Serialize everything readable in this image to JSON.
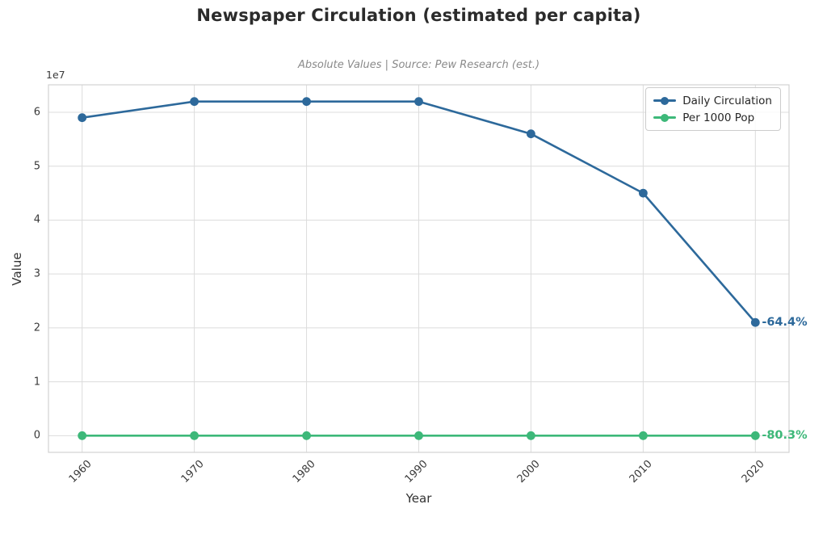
{
  "figure": {
    "title": "Newspaper Circulation (estimated per capita)",
    "subtitle": "Absolute Values | Source: Pew Research (est.)"
  },
  "chart_data": {
    "type": "line",
    "x": [
      1960,
      1970,
      1980,
      1990,
      2000,
      2010,
      2020
    ],
    "series": [
      {
        "name": "Daily Circulation",
        "color": "#2d699b",
        "values": [
          59000000,
          62000000,
          62000000,
          62000000,
          56000000,
          45000000,
          21000000
        ],
        "annotation": "-64.4%"
      },
      {
        "name": "Per 1000 Pop",
        "color": "#3db879",
        "values": [
          0,
          0,
          0,
          0,
          0,
          0,
          0
        ],
        "annotation": "-80.3%"
      }
    ],
    "title": "Newspaper Circulation (estimated per capita)",
    "subtitle": "Absolute Values | Source: Pew Research (est.)",
    "xlabel": "Year",
    "ylabel": "Value",
    "y_offset_label": "1e7",
    "xticks": [
      1960,
      1970,
      1980,
      1990,
      2000,
      2010,
      2020
    ],
    "yticks": [
      0,
      1,
      2,
      3,
      4,
      5,
      6
    ],
    "ytick_scale": 10000000,
    "xlim": [
      1957,
      2023
    ],
    "ylim": [
      -3100000,
      65100000
    ],
    "grid": true,
    "legend_position": "upper right",
    "grid_color": "#dcdcdc"
  }
}
